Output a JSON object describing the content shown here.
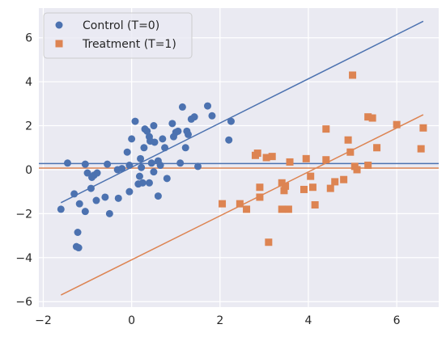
{
  "chart_data": {
    "type": "scatter",
    "title": "",
    "xlabel": "",
    "ylabel": "",
    "xlim": [
      -2.1,
      6.95
    ],
    "ylim": [
      -6.25,
      7.35
    ],
    "xticks": [
      -2,
      0,
      2,
      4,
      6
    ],
    "yticks": [
      -6,
      -4,
      -2,
      0,
      2,
      4,
      6
    ],
    "grid": true,
    "legend_position": "top-left",
    "background": "#eaeaf2",
    "series": [
      {
        "name": "Control (T=0)",
        "marker": "circle",
        "color": "#4c72b0",
        "points": [
          [
            -1.6,
            -1.8
          ],
          [
            -1.45,
            0.3
          ],
          [
            -1.3,
            -1.1
          ],
          [
            -1.25,
            -3.5
          ],
          [
            -1.2,
            -3.55
          ],
          [
            -1.22,
            -2.85
          ],
          [
            -1.18,
            -1.55
          ],
          [
            -1.05,
            0.25
          ],
          [
            -1.05,
            -1.9
          ],
          [
            -1.0,
            -0.15
          ],
          [
            -0.92,
            -0.85
          ],
          [
            -0.9,
            -0.35
          ],
          [
            -0.85,
            -0.25
          ],
          [
            -0.8,
            -1.4
          ],
          [
            -0.78,
            -0.15
          ],
          [
            -0.6,
            -1.25
          ],
          [
            -0.55,
            0.25
          ],
          [
            -0.5,
            -2.0
          ],
          [
            -0.32,
            0.0
          ],
          [
            -0.3,
            -1.3
          ],
          [
            -0.22,
            0.05
          ],
          [
            -0.1,
            0.8
          ],
          [
            -0.05,
            -1.0
          ],
          [
            -0.05,
            0.2
          ],
          [
            0.0,
            1.4
          ],
          [
            0.08,
            2.2
          ],
          [
            0.15,
            -0.65
          ],
          [
            0.18,
            -0.3
          ],
          [
            0.2,
            0.5
          ],
          [
            0.22,
            0.1
          ],
          [
            0.25,
            -0.6
          ],
          [
            0.28,
            1.0
          ],
          [
            0.3,
            1.85
          ],
          [
            0.35,
            1.75
          ],
          [
            0.4,
            1.5
          ],
          [
            0.42,
            1.3
          ],
          [
            0.4,
            -0.6
          ],
          [
            0.45,
            0.3
          ],
          [
            0.5,
            -0.1
          ],
          [
            0.52,
            1.25
          ],
          [
            0.5,
            2.0
          ],
          [
            0.6,
            -1.2
          ],
          [
            0.6,
            0.4
          ],
          [
            0.65,
            0.2
          ],
          [
            0.7,
            1.4
          ],
          [
            0.75,
            1.0
          ],
          [
            0.8,
            -0.4
          ],
          [
            0.92,
            2.1
          ],
          [
            0.95,
            1.5
          ],
          [
            1.0,
            1.7
          ],
          [
            1.05,
            1.75
          ],
          [
            1.1,
            0.3
          ],
          [
            1.15,
            2.85
          ],
          [
            1.22,
            1.0
          ],
          [
            1.25,
            1.75
          ],
          [
            1.28,
            1.6
          ],
          [
            1.35,
            2.3
          ],
          [
            1.42,
            2.4
          ],
          [
            1.5,
            0.15
          ],
          [
            1.72,
            2.9
          ],
          [
            1.82,
            2.45
          ],
          [
            2.2,
            1.35
          ],
          [
            2.25,
            2.2
          ]
        ]
      },
      {
        "name": "Treatment (T=1)",
        "marker": "square",
        "color": "#dd8452",
        "points": [
          [
            2.05,
            -1.55
          ],
          [
            2.45,
            -1.55
          ],
          [
            2.6,
            -1.8
          ],
          [
            2.8,
            0.65
          ],
          [
            2.85,
            0.75
          ],
          [
            2.9,
            -0.8
          ],
          [
            2.9,
            -1.25
          ],
          [
            3.05,
            0.55
          ],
          [
            3.1,
            -3.3
          ],
          [
            3.18,
            0.6
          ],
          [
            3.4,
            -0.6
          ],
          [
            3.4,
            -1.8
          ],
          [
            3.45,
            -0.95
          ],
          [
            3.48,
            -0.75
          ],
          [
            3.55,
            -1.8
          ],
          [
            3.58,
            0.35
          ],
          [
            3.9,
            -0.9
          ],
          [
            3.95,
            0.5
          ],
          [
            4.05,
            -0.3
          ],
          [
            4.1,
            -0.8
          ],
          [
            4.15,
            -1.6
          ],
          [
            4.4,
            1.85
          ],
          [
            4.4,
            0.45
          ],
          [
            4.5,
            -0.85
          ],
          [
            4.6,
            -0.55
          ],
          [
            4.8,
            -0.45
          ],
          [
            4.9,
            1.35
          ],
          [
            4.95,
            0.8
          ],
          [
            5.0,
            4.3
          ],
          [
            5.05,
            0.15
          ],
          [
            5.1,
            0.0
          ],
          [
            5.35,
            0.2
          ],
          [
            5.35,
            2.4
          ],
          [
            5.45,
            2.35
          ],
          [
            5.55,
            1.0
          ],
          [
            6.0,
            2.05
          ],
          [
            6.55,
            0.95
          ],
          [
            6.6,
            1.9
          ]
        ]
      }
    ],
    "lines": [
      {
        "name": "control-regression-line",
        "color": "#4c72b0",
        "x": [
          -1.6,
          6.6
        ],
        "y": [
          -1.5,
          6.75
        ]
      },
      {
        "name": "treatment-regression-line",
        "color": "#dd8452",
        "x": [
          -1.6,
          6.6
        ],
        "y": [
          -5.7,
          2.5
        ]
      },
      {
        "name": "control-mean-line",
        "color": "#4c72b0",
        "y": 0.28
      },
      {
        "name": "treatment-mean-line",
        "color": "#dd8452",
        "y": 0.07
      }
    ]
  }
}
